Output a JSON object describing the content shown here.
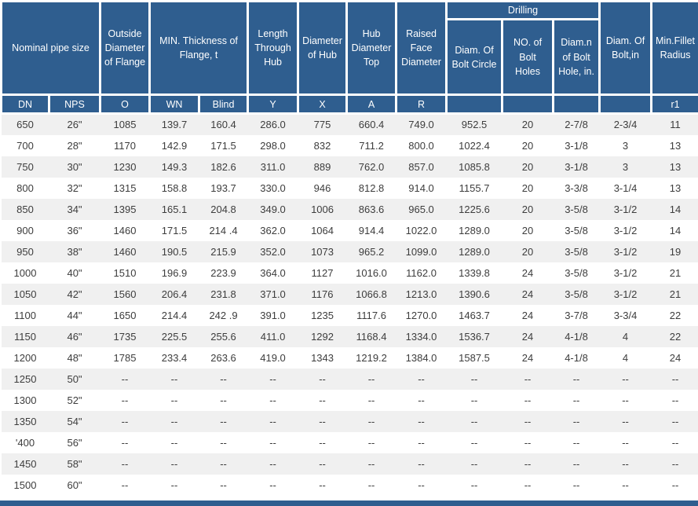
{
  "colors": {
    "header_bg": "#2f5e8f",
    "header_text": "#ffffff",
    "row_stripe": "#f0f0f0",
    "row_white": "#ffffff",
    "text": "#3d3d3d"
  },
  "table": {
    "header": {
      "nominal_pipe_size": "Nominal pipe size",
      "outside_diameter": "Outside Diameter of Flange",
      "min_thickness": "MIN. Thickness of Flange, t",
      "length_through_hub": "Length Through Hub",
      "diameter_of_hub": "Diameter of Hub",
      "hub_diameter_top": "Hub Diameter Top",
      "raised_face_diameter": "Raised Face Diameter",
      "drilling": "Drilling",
      "diam_bolt_circle": "Diam. Of Bolt Circle",
      "no_bolt_holes": "NO. of Bolt Holes",
      "diam_bolt_hole": "Diam.n of Bolt Hole, in.",
      "diam_bolt": "Diam. Of Bolt,in",
      "min_fillet_radius": "Min.Fillet Radius"
    },
    "subheader": [
      "DN",
      "NPS",
      "O",
      "WN",
      "Blind",
      "Y",
      "X",
      "A",
      "R",
      "",
      "",
      "",
      "",
      "r1"
    ],
    "rows": [
      [
        "650",
        "26\"",
        "1085",
        "139.7",
        "160.4",
        "286.0",
        "775",
        "660.4",
        "749.0",
        "952.5",
        "20",
        "2-7/8",
        "2-3/4",
        "11"
      ],
      [
        "700",
        "28\"",
        "1170",
        "142.9",
        "171.5",
        "298.0",
        "832",
        "711.2",
        "800.0",
        "1022.4",
        "20",
        "3-1/8",
        "3",
        "13"
      ],
      [
        "750",
        "30\"",
        "1230",
        "149.3",
        "182.6",
        "311.0",
        "889",
        "762.0",
        "857.0",
        "1085.8",
        "20",
        "3-1/8",
        "3",
        "13"
      ],
      [
        "800",
        "32\"",
        "1315",
        "158.8",
        "193.7",
        "330.0",
        "946",
        "812.8",
        "914.0",
        "1155.7",
        "20",
        "3-3/8",
        "3-1/4",
        "13"
      ],
      [
        "850",
        "34\"",
        "1395",
        "165.1",
        "204.8",
        "349.0",
        "1006",
        "863.6",
        "965.0",
        "1225.6",
        "20",
        "3-5/8",
        "3-1/2",
        "14"
      ],
      [
        "900",
        "36\"",
        "1460",
        "171.5",
        "214 .4",
        "362.0",
        "1064",
        "914.4",
        "1022.0",
        "1289.0",
        "20",
        "3-5/8",
        "3-1/2",
        "14"
      ],
      [
        "950",
        "38\"",
        "1460",
        "190.5",
        "215.9",
        "352.0",
        "1073",
        "965.2",
        "1099.0",
        "1289.0",
        "20",
        "3-5/8",
        "3-1/2",
        "19"
      ],
      [
        "1000",
        "40\"",
        "1510",
        "196.9",
        "223.9",
        "364.0",
        "1127",
        "1016.0",
        "1162.0",
        "1339.8",
        "24",
        "3-5/8",
        "3-1/2",
        "21"
      ],
      [
        "1050",
        "42\"",
        "1560",
        "206.4",
        "231.8",
        "371.0",
        "1176",
        "1066.8",
        "1213.0",
        "1390.6",
        "24",
        "3-5/8",
        "3-1/2",
        "21"
      ],
      [
        "1100",
        "44\"",
        "1650",
        "214.4",
        "242 .9",
        "391.0",
        "1235",
        "1117.6",
        "1270.0",
        "1463.7",
        "24",
        "3-7/8",
        "3-3/4",
        "22"
      ],
      [
        "1150",
        "46\"",
        "1735",
        "225.5",
        "255.6",
        "411.0",
        "1292",
        "1168.4",
        "1334.0",
        "1536.7",
        "24",
        "4-1/8",
        "4",
        "22"
      ],
      [
        "1200",
        "48\"",
        "1785",
        "233.4",
        "263.6",
        "419.0",
        "1343",
        "1219.2",
        "1384.0",
        "1587.5",
        "24",
        "4-1/8",
        "4",
        "24"
      ],
      [
        "1250",
        "50\"",
        "--",
        "--",
        "--",
        "--",
        "--",
        "--",
        "--",
        "--",
        "--",
        "--",
        "--",
        "--"
      ],
      [
        "1300",
        "52\"",
        "--",
        "--",
        "--",
        "--",
        "--",
        "--",
        "--",
        "--",
        "--",
        "--",
        "--",
        "--"
      ],
      [
        "1350",
        "54\"",
        "--",
        "--",
        "--",
        "--",
        "--",
        "--",
        "--",
        "--",
        "--",
        "--",
        "--",
        "--"
      ],
      [
        "'400",
        "56\"",
        "--",
        "--",
        "--",
        "--",
        "--",
        "--",
        "--",
        "--",
        "--",
        "--",
        "--",
        "--"
      ],
      [
        "1450",
        "58\"",
        "--",
        "--",
        "--",
        "--",
        "--",
        "--",
        "--",
        "--",
        "--",
        "--",
        "--",
        "--"
      ],
      [
        "1500",
        "60\"",
        "--",
        "--",
        "--",
        "--",
        "--",
        "--",
        "--",
        "--",
        "--",
        "--",
        "--",
        "--"
      ]
    ]
  }
}
